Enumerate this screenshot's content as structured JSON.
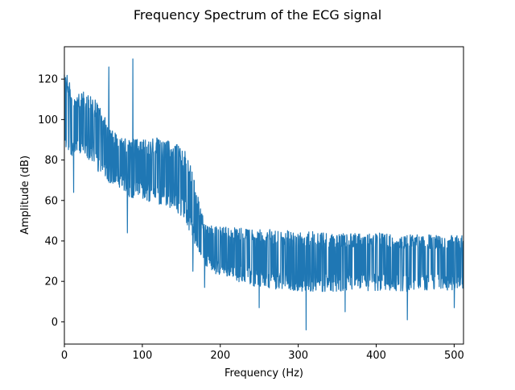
{
  "chart_data": {
    "type": "line",
    "title": "Frequency Spectrum of the ECG signal",
    "xlabel": "Frequency (Hz)",
    "ylabel": "Amplitude (dB)",
    "xlim": [
      0,
      512
    ],
    "ylim": [
      -11,
      136
    ],
    "xticks": [
      0,
      100,
      200,
      300,
      400,
      500
    ],
    "yticks": [
      0,
      20,
      40,
      60,
      80,
      100,
      120
    ],
    "grid": false,
    "series": [
      {
        "color": "#1f77b4",
        "envelope_upper": [
          {
            "x": 0,
            "y": 129
          },
          {
            "x": 10,
            "y": 113
          },
          {
            "x": 25,
            "y": 114
          },
          {
            "x": 40,
            "y": 110
          },
          {
            "x": 60,
            "y": 96
          },
          {
            "x": 80,
            "y": 91
          },
          {
            "x": 100,
            "y": 90
          },
          {
            "x": 120,
            "y": 91
          },
          {
            "x": 140,
            "y": 89
          },
          {
            "x": 155,
            "y": 85
          },
          {
            "x": 165,
            "y": 75
          },
          {
            "x": 172,
            "y": 62
          },
          {
            "x": 180,
            "y": 48
          },
          {
            "x": 200,
            "y": 47
          },
          {
            "x": 250,
            "y": 46
          },
          {
            "x": 300,
            "y": 45
          },
          {
            "x": 350,
            "y": 44
          },
          {
            "x": 400,
            "y": 44
          },
          {
            "x": 450,
            "y": 43
          },
          {
            "x": 512,
            "y": 43
          }
        ],
        "envelope_lower": [
          {
            "x": 0,
            "y": 86
          },
          {
            "x": 10,
            "y": 82
          },
          {
            "x": 25,
            "y": 81
          },
          {
            "x": 40,
            "y": 75
          },
          {
            "x": 60,
            "y": 68
          },
          {
            "x": 80,
            "y": 62
          },
          {
            "x": 100,
            "y": 60
          },
          {
            "x": 120,
            "y": 58
          },
          {
            "x": 140,
            "y": 56
          },
          {
            "x": 155,
            "y": 50
          },
          {
            "x": 165,
            "y": 40
          },
          {
            "x": 172,
            "y": 33
          },
          {
            "x": 180,
            "y": 28
          },
          {
            "x": 200,
            "y": 22
          },
          {
            "x": 250,
            "y": 17
          },
          {
            "x": 300,
            "y": 15
          },
          {
            "x": 350,
            "y": 15
          },
          {
            "x": 400,
            "y": 15
          },
          {
            "x": 450,
            "y": 15
          },
          {
            "x": 512,
            "y": 16
          }
        ],
        "peaks": [
          {
            "x": 57,
            "y": 126
          },
          {
            "x": 88,
            "y": 130
          }
        ],
        "dips": [
          {
            "x": 12,
            "y": 64
          },
          {
            "x": 81,
            "y": 44
          },
          {
            "x": 165,
            "y": 25
          },
          {
            "x": 180,
            "y": 17
          },
          {
            "x": 250,
            "y": 7
          },
          {
            "x": 310,
            "y": -4
          },
          {
            "x": 360,
            "y": 5
          },
          {
            "x": 440,
            "y": 1
          },
          {
            "x": 500,
            "y": 7
          }
        ]
      }
    ]
  }
}
